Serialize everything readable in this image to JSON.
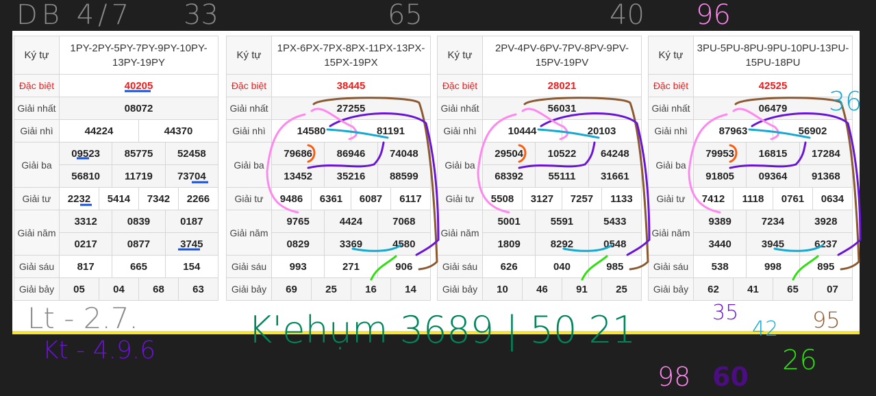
{
  "label_ky_tu": "Ký tự",
  "labels": {
    "db": "Đặc biệt",
    "g1": "Giải nhất",
    "g2": "Giải nhì",
    "g3": "Giải ba",
    "g4": "Giải tư",
    "g5": "Giải năm",
    "g6": "Giải sáu",
    "g7": "Giải bảy"
  },
  "tables": [
    {
      "ky_tu": "1PY-2PY-5PY-7PY-9PY-10PY-13PY-19PY",
      "db": "40205",
      "g1": "08072",
      "g2": [
        "44224",
        "44370"
      ],
      "g3": [
        "09523",
        "85775",
        "52458",
        "56810",
        "11719",
        "73704"
      ],
      "g4": [
        "2232",
        "5414",
        "7342",
        "2266"
      ],
      "g5": [
        "3312",
        "0839",
        "0187",
        "0217",
        "0877",
        "3745"
      ],
      "g6": [
        "817",
        "665",
        "154"
      ],
      "g7": [
        "05",
        "04",
        "68",
        "63"
      ]
    },
    {
      "ky_tu": "1PX-6PX-7PX-8PX-11PX-13PX-15PX-19PX",
      "db": "38445",
      "g1": "27255",
      "g2": [
        "14580",
        "81191"
      ],
      "g3": [
        "79686",
        "86946",
        "74048",
        "13452",
        "35216",
        "88599"
      ],
      "g4": [
        "9486",
        "6361",
        "6087",
        "6117"
      ],
      "g5": [
        "9765",
        "4424",
        "7068",
        "0829",
        "3369",
        "4580"
      ],
      "g6": [
        "993",
        "271",
        "906"
      ],
      "g7": [
        "69",
        "25",
        "16",
        "14"
      ]
    },
    {
      "ky_tu": "2PV-4PV-6PV-7PV-8PV-9PV-15PV-19PV",
      "db": "28021",
      "g1": "56031",
      "g2": [
        "10444",
        "20103"
      ],
      "g3": [
        "29504",
        "10522",
        "64248",
        "68392",
        "55111",
        "31661"
      ],
      "g4": [
        "5508",
        "3127",
        "7257",
        "1133"
      ],
      "g5": [
        "5001",
        "5591",
        "5433",
        "1809",
        "8292",
        "0548"
      ],
      "g6": [
        "626",
        "040",
        "985"
      ],
      "g7": [
        "10",
        "46",
        "91",
        "25"
      ]
    },
    {
      "ky_tu": "3PU-5PU-8PU-9PU-10PU-13PU-15PU-18PU",
      "db": "42525",
      "g1": "06479",
      "g2": [
        "87963",
        "56902"
      ],
      "g3": [
        "79953",
        "16815",
        "17284",
        "91805",
        "09364",
        "91368"
      ],
      "g4": [
        "7412",
        "1118",
        "0761",
        "0634"
      ],
      "g5": [
        "9389",
        "7234",
        "3928",
        "3440",
        "3945",
        "6237"
      ],
      "g6": [
        "538",
        "998",
        "895"
      ],
      "g7": [
        "62",
        "41",
        "65",
        "07"
      ]
    }
  ],
  "handwriting": {
    "top_left": "DB 4/7",
    "n33": "33",
    "n65": "65",
    "n40": "40",
    "n96": "96",
    "n36": "36",
    "n98": "98",
    "n60": "60",
    "lt": "Lt - 2.7.",
    "kt": "Kt - 4.9.6",
    "main": "K'ehụm 3689 | 50 21",
    "n35": "35",
    "n42": "42",
    "n95": "95",
    "n26": "26"
  },
  "ink_colors": {
    "gray": "#8a8a8a",
    "purple": "#6a14d8",
    "green": "#00855a",
    "pink": "#ff88ee",
    "cyan": "#15a8d0",
    "brown": "#8b5a32",
    "lime": "#2fe010",
    "orange": "#ff5a0a"
  }
}
